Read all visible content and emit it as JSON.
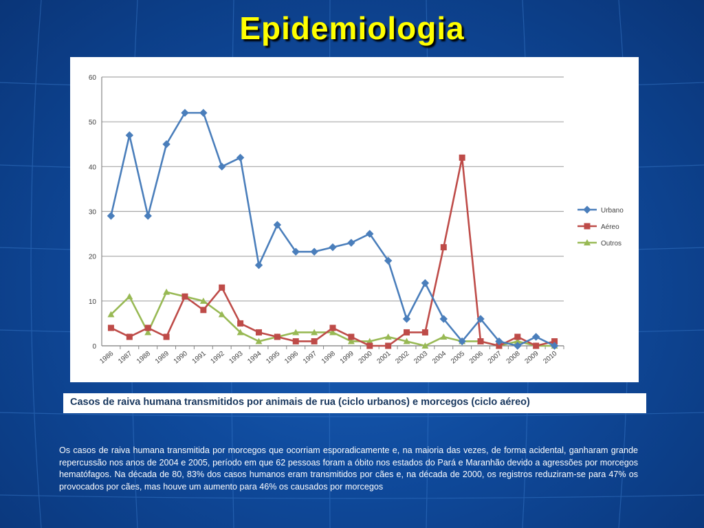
{
  "slide": {
    "title": "Epidemiologia",
    "caption": "Casos de raiva humana transmitidos por animais de rua (ciclo urbanos)  e morcegos (ciclo aéreo)",
    "body": "Os casos de raiva humana transmitida por morcegos que ocorriam esporadicamente e, na maioria das vezes, de forma acidental, ganharam grande repercussão nos anos de 2004 e 2005, período em que 62 pessoas foram a óbito nos estados do Pará e Maranhão devido a agressões por morcegos hematófagos. Na década de 80, 83% dos casos humanos eram transmitidos por cães e, na década de 2000, os registros reduziram-se para 47% os provocados por cães, mas houve um aumento para 46% os causados por morcegos"
  },
  "chart_data": {
    "type": "line",
    "title": "",
    "xlabel": "",
    "ylabel": "",
    "ylim": [
      0,
      60
    ],
    "yticks": [
      "0",
      "10",
      "20",
      "30",
      "40",
      "50",
      "60"
    ],
    "grid": true,
    "legend_position": "right",
    "categories": [
      "1986",
      "1987",
      "1988",
      "1989",
      "1990",
      "1991",
      "1992",
      "1993",
      "1994",
      "1995",
      "1996",
      "1997",
      "1998",
      "1999",
      "2000",
      "2001",
      "2002",
      "2003",
      "2004",
      "2005",
      "2006",
      "2007",
      "2008",
      "2009",
      "2010"
    ],
    "series": [
      {
        "name": "Urbano",
        "color": "#4a7ebb",
        "marker": "diamond",
        "values": [
          29,
          47,
          29,
          45,
          52,
          52,
          40,
          42,
          18,
          27,
          21,
          21,
          22,
          23,
          25,
          19,
          6,
          14,
          6,
          1,
          6,
          1,
          0,
          2,
          0
        ]
      },
      {
        "name": "Aéreo",
        "color": "#be4b48",
        "marker": "square",
        "values": [
          4,
          2,
          4,
          2,
          11,
          8,
          13,
          5,
          3,
          2,
          1,
          1,
          4,
          2,
          0,
          0,
          3,
          3,
          22,
          42,
          1,
          0,
          2,
          0,
          1
        ]
      },
      {
        "name": "Outros",
        "color": "#98b954",
        "marker": "triangle",
        "values": [
          7,
          11,
          3,
          12,
          11,
          10,
          7,
          3,
          1,
          2,
          3,
          3,
          3,
          1,
          1,
          2,
          1,
          0,
          2,
          1,
          1,
          0,
          1,
          0,
          0
        ]
      }
    ]
  }
}
